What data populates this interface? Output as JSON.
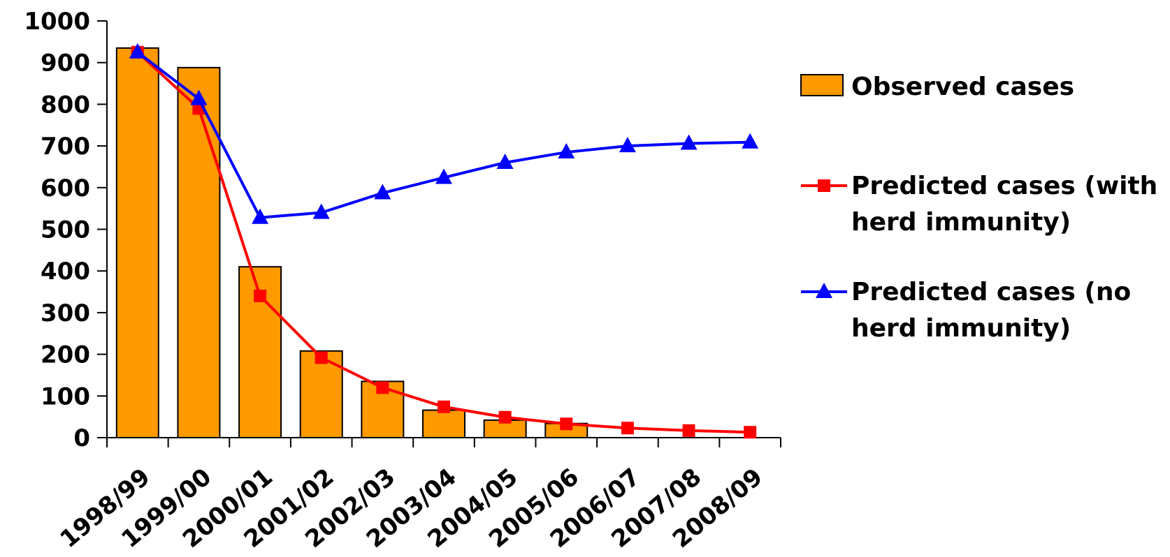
{
  "chart_data": {
    "type": "bar",
    "title": "",
    "xlabel": "",
    "ylabel": "",
    "ylim": [
      0,
      1000
    ],
    "y_ticks": [
      "0",
      "100",
      "200",
      "300",
      "400",
      "500",
      "600",
      "700",
      "800",
      "900",
      "1000"
    ],
    "categories": [
      "1998/99",
      "1999/00",
      "2000/01",
      "2001/02",
      "2002/03",
      "2003/04",
      "2004/05",
      "2005/06",
      "2006/07",
      "2007/08",
      "2008/09"
    ],
    "series": [
      {
        "name": "Observed cases",
        "kind": "bar",
        "color": "#FF9900",
        "values": [
          935,
          888,
          410,
          208,
          135,
          66,
          42,
          34,
          null,
          null,
          null
        ]
      },
      {
        "name_lines": [
          "Predicted cases (with",
          "herd immunity)"
        ],
        "kind": "line",
        "marker": "square",
        "color": "#FF0000",
        "values": [
          925,
          790,
          340,
          192,
          120,
          74,
          49,
          33,
          23,
          17,
          13
        ]
      },
      {
        "name_lines": [
          "Predicted cases (no",
          "herd immunity)"
        ],
        "kind": "line",
        "marker": "triangle",
        "color": "#0000FF",
        "values": [
          925,
          813,
          528,
          540,
          587,
          624,
          660,
          685,
          700,
          706,
          709
        ]
      }
    ],
    "legend_position": "right",
    "grid": false
  }
}
